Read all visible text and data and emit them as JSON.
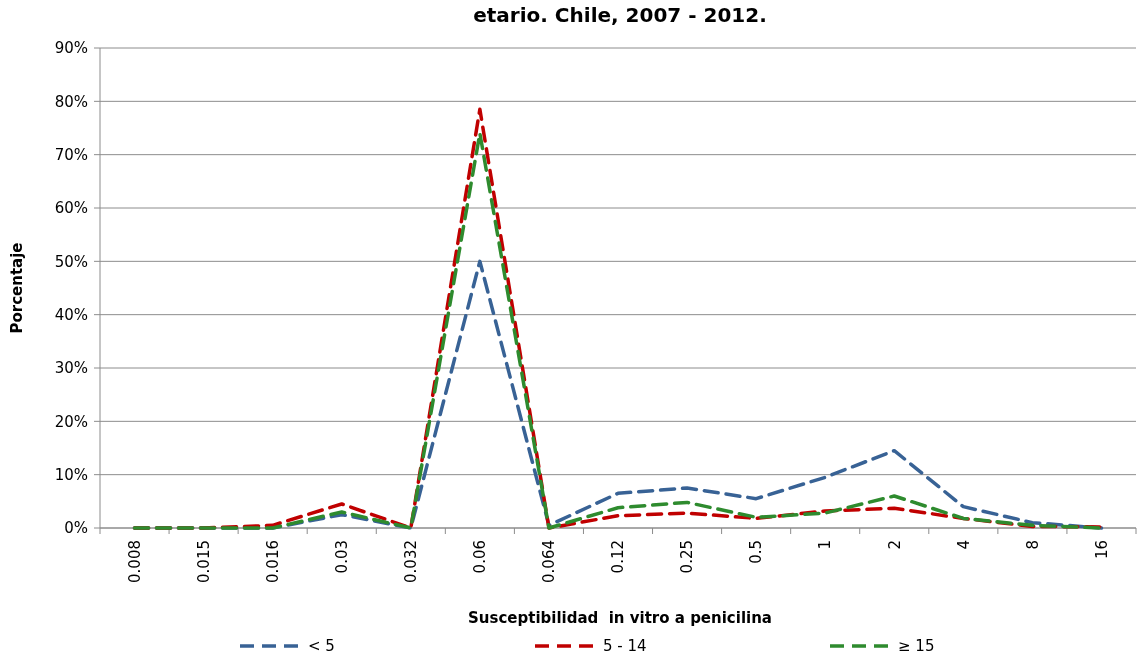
{
  "chart_data": {
    "type": "line",
    "title": "etario. Chile, 2007 - 2012.",
    "xlabel": "Susceptibilidad  in vitro a penicilina",
    "ylabel": "Porcentaje",
    "categories": [
      "0.008",
      "0.015",
      "0.016",
      "0.03",
      "0.032",
      "0.06",
      "0.064",
      "0.12",
      "0.25",
      "0.5",
      "1",
      "2",
      "4",
      "8",
      "16"
    ],
    "series": [
      {
        "name": "< 5",
        "color": "#386295",
        "values": [
          0,
          0,
          0,
          2.5,
          0,
          50,
          0.5,
          6.5,
          7.5,
          5.5,
          9.5,
          14.5,
          4,
          1,
          0
        ]
      },
      {
        "name": "5 - 14",
        "color": "#c00000",
        "values": [
          0,
          0,
          0.5,
          4.5,
          0,
          78.5,
          0,
          2.3,
          2.8,
          1.8,
          3.2,
          3.7,
          1.8,
          0.3,
          0.2
        ]
      },
      {
        "name": "≥ 15",
        "color": "#2e8b2e",
        "values": [
          0,
          0,
          0,
          3,
          0,
          74,
          0,
          3.8,
          4.8,
          2,
          2.8,
          6,
          1.8,
          0.5,
          0
        ]
      }
    ],
    "ylim": [
      0,
      90
    ],
    "yticks": [
      {
        "value": 0,
        "label": "0%"
      },
      {
        "value": 10,
        "label": "10%"
      },
      {
        "value": 20,
        "label": "20%"
      },
      {
        "value": 30,
        "label": "30%"
      },
      {
        "value": 40,
        "label": "40%"
      },
      {
        "value": 50,
        "label": "50%"
      },
      {
        "value": 60,
        "label": "60%"
      },
      {
        "value": 70,
        "label": "70%"
      },
      {
        "value": 80,
        "label": "80%"
      },
      {
        "value": 90,
        "label": "90%"
      }
    ],
    "grid": "y",
    "legend": "bottom",
    "marker": "none",
    "line_style": "dashed"
  }
}
